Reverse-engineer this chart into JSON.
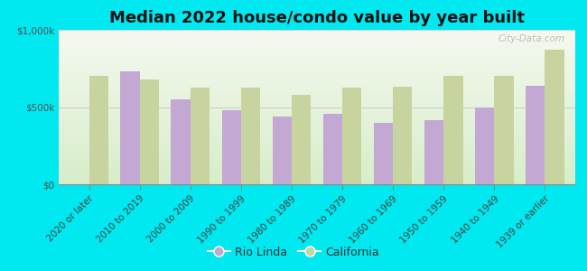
{
  "title": "Median 2022 house/condo value by year built",
  "categories": [
    "2020 or later",
    "2010 to 2019",
    "2000 to 2009",
    "1990 to 1999",
    "1980 to 1989",
    "1970 to 1979",
    "1960 to 1969",
    "1950 to 1959",
    "1940 to 1949",
    "1939 or earlier"
  ],
  "rio_linda": [
    null,
    730000,
    550000,
    480000,
    440000,
    455000,
    400000,
    415000,
    500000,
    635000
  ],
  "california": [
    700000,
    680000,
    625000,
    625000,
    580000,
    625000,
    630000,
    700000,
    700000,
    870000
  ],
  "rio_linda_color": "#c4a8d4",
  "california_color": "#c8d4a0",
  "background_color": "#00e8f0",
  "ylim": [
    0,
    1000000
  ],
  "yticks": [
    0,
    500000,
    1000000
  ],
  "ytick_labels": [
    "$0",
    "$500k",
    "$1,000k"
  ],
  "legend_rio_linda": "Rio Linda",
  "legend_california": "California",
  "bar_width": 0.38,
  "title_fontsize": 13,
  "tick_fontsize": 7.5,
  "legend_fontsize": 9,
  "watermark": "City-Data.com"
}
